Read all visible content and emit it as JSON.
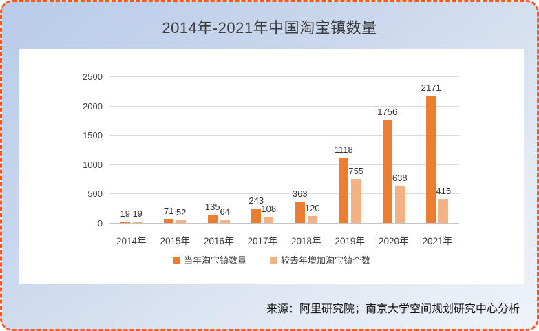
{
  "title": "2014年-2021年中国淘宝镇数量",
  "source": "来源：阿里研究院；南京大学空间规划研究中心分析",
  "colors": {
    "border": "#FA5A1E",
    "panel_bg": "#FFFFFF",
    "grid": "#D9D9D9",
    "axis_text": "#404040",
    "series1": "#ED7D31",
    "series2": "#F4B183"
  },
  "chart_data": {
    "type": "bar",
    "title": "2014年-2021年中国淘宝镇数量",
    "categories": [
      "2014年",
      "2015年",
      "2016年",
      "2017年",
      "2018年",
      "2019年",
      "2020年",
      "2021年"
    ],
    "series": [
      {
        "name": "当年淘宝镇数量",
        "color": "#ED7D31",
        "values": [
          19,
          71,
          135,
          243,
          363,
          1118,
          1756,
          2171
        ]
      },
      {
        "name": "较去年增加淘宝镇个数",
        "color": "#F4B183",
        "values": [
          19,
          52,
          64,
          108,
          120,
          755,
          638,
          415
        ]
      }
    ],
    "xlabel": "",
    "ylabel": "",
    "ylim": [
      0,
      2500
    ],
    "yticks": [
      0,
      500,
      1000,
      1500,
      2000,
      2500
    ],
    "grid": true,
    "legend_position": "bottom",
    "data_labels": true
  }
}
